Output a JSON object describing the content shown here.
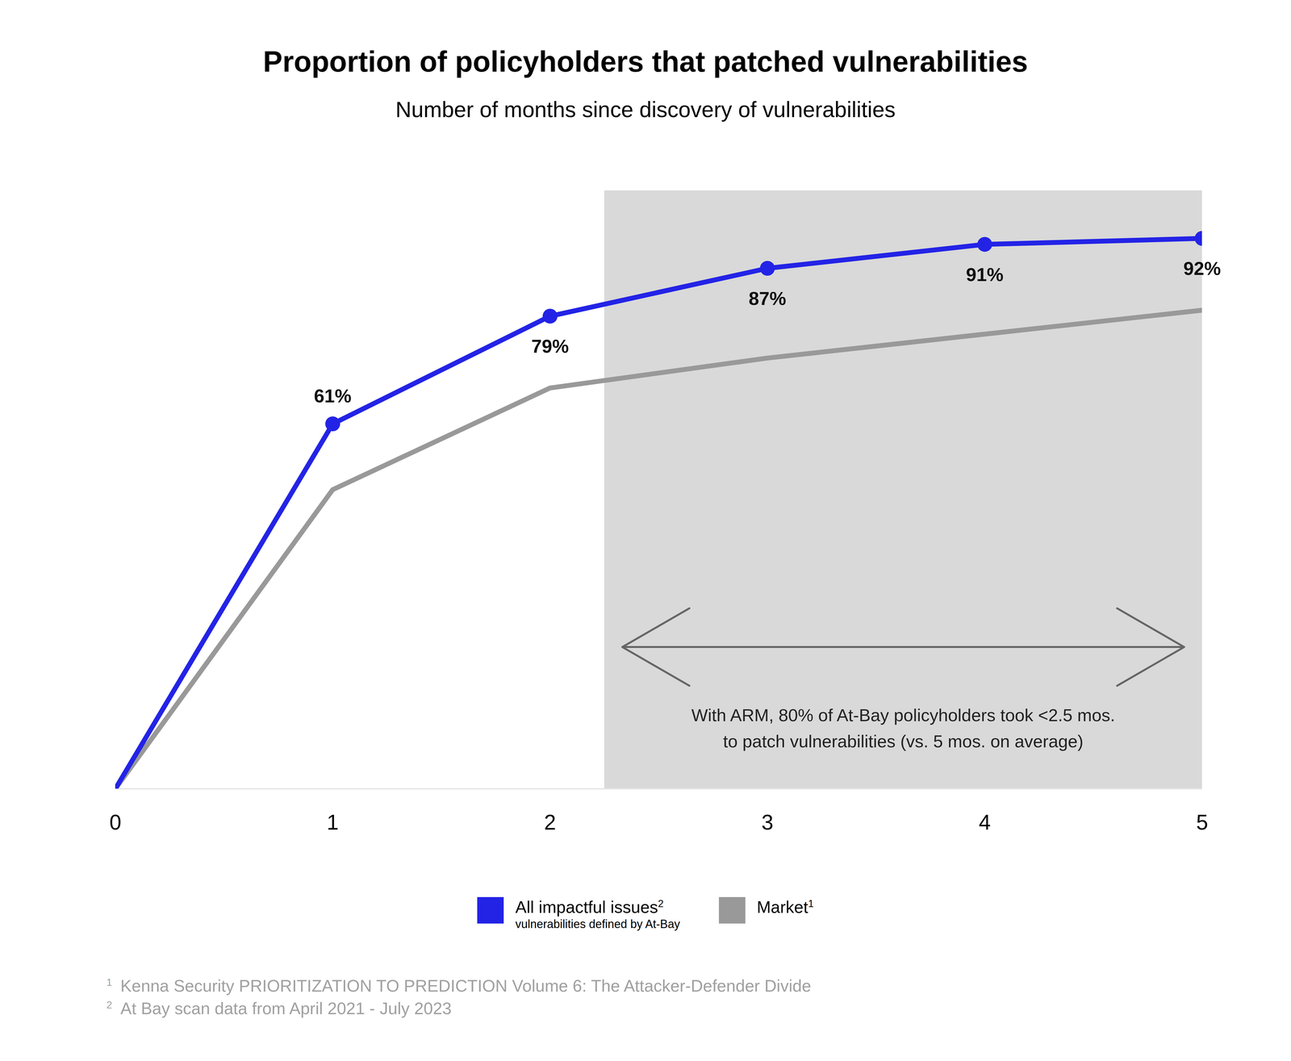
{
  "chart_data": {
    "type": "line",
    "title": "Proportion of policyholders that patched vulnerabilities",
    "subtitle": "Number of months since discovery of vulnerabilities",
    "x": [
      0,
      1,
      2,
      3,
      4,
      5
    ],
    "xlim": [
      0,
      5
    ],
    "xticks": [
      0,
      1,
      2,
      3,
      4,
      5
    ],
    "ylim": [
      0,
      100
    ],
    "tick_labels": "x",
    "series": [
      {
        "name": "All impactful issues",
        "note_marker": "2",
        "description": "vulnerabilities defined by At-Bay",
        "color": "#2323e6",
        "marker": "circle",
        "line_style": "solid",
        "data_labels": true,
        "values": [
          0,
          61,
          79,
          87,
          91,
          92
        ],
        "value_labels": [
          null,
          "61%",
          "79%",
          "87%",
          "91%",
          "92%"
        ]
      },
      {
        "name": "Market",
        "note_marker": "1",
        "color": "#999999",
        "line_style": "solid",
        "values": [
          0,
          50,
          67,
          72,
          76,
          80
        ]
      }
    ],
    "annotations": [
      {
        "text": "With ARM, 80% of At-Bay policyholders took <2.5 mos.\nto patch vulnerabilities (vs. 5 mos. on average)",
        "x": [
          2.25,
          5
        ]
      }
    ],
    "footnotes": [
      {
        "marker": "1",
        "text": "Kenna Security PRIORITIZATION TO PREDICTION Volume 6: The Attacker-Defender Divide"
      },
      {
        "marker": "2",
        "text": "At Bay scan data from April 2021 - July 2023"
      }
    ]
  }
}
